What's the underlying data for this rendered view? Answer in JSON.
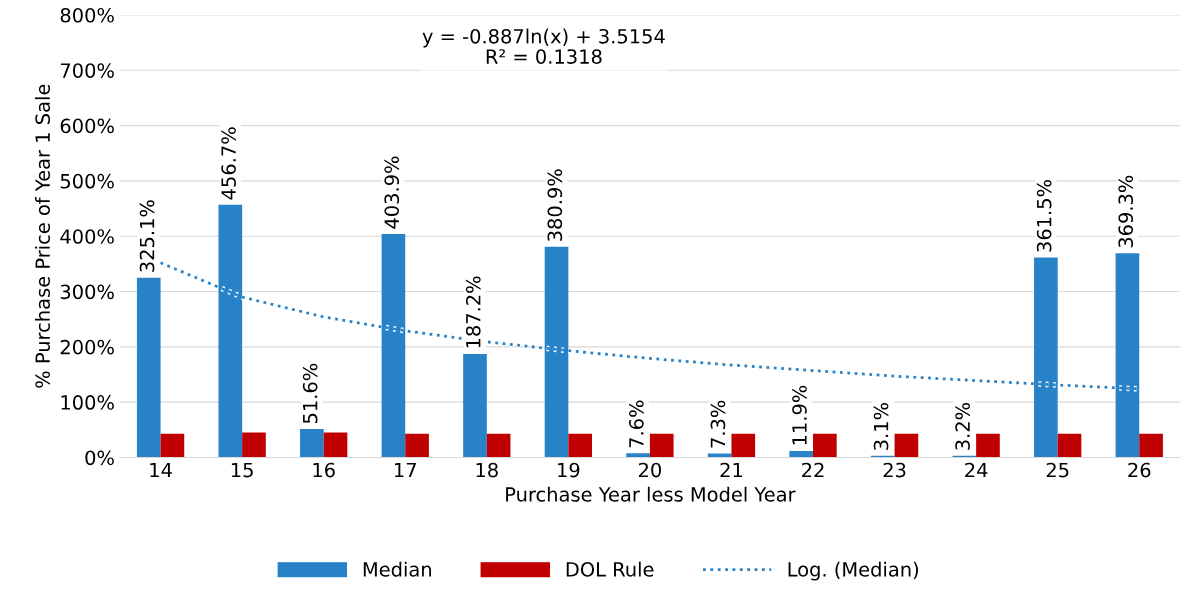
{
  "chart_data": {
    "type": "bar",
    "xlabel": "Purchase Year less Model Year",
    "ylabel": "% Purchase Price of Year 1 Sale",
    "categories": [
      "14",
      "15",
      "16",
      "17",
      "18",
      "19",
      "20",
      "21",
      "22",
      "23",
      "24",
      "25",
      "26"
    ],
    "series": [
      {
        "name": "Median",
        "color": "#2882c8",
        "values": [
          325.1,
          456.7,
          51.6,
          403.9,
          187.2,
          380.9,
          7.6,
          7.3,
          11.9,
          3.1,
          3.2,
          361.5,
          369.3
        ],
        "value_labels": [
          "325.1%",
          "456.7%",
          "51.6%",
          "403.9%",
          "187.2%",
          "380.9%",
          "7.6%",
          "7.3%",
          "11.9%",
          "3.1%",
          "3.2%",
          "361.5%",
          "369.3%"
        ]
      },
      {
        "name": "DOL Rule",
        "color": "#c00000",
        "values": [
          43,
          45,
          45,
          43,
          43,
          43,
          43,
          43,
          43,
          43,
          43,
          43,
          43
        ]
      },
      {
        "name": "Log. (Median)",
        "type": "line",
        "line_style": "dotted",
        "color": "#2882c8",
        "values": [
          352,
          290,
          254,
          229,
          209,
          193,
          179,
          167,
          157,
          147,
          139,
          131,
          124
        ]
      }
    ],
    "ylim": [
      0,
      800
    ],
    "yticks": [
      {
        "value": 0,
        "label": "0%"
      },
      {
        "value": 100,
        "label": "100%"
      },
      {
        "value": 200,
        "label": "200%"
      },
      {
        "value": 300,
        "label": "300%"
      },
      {
        "value": 400,
        "label": "400%"
      },
      {
        "value": 500,
        "label": "500%"
      },
      {
        "value": 600,
        "label": "600%"
      },
      {
        "value": 700,
        "label": "700%"
      },
      {
        "value": 800,
        "label": "800%"
      }
    ],
    "grid": "y",
    "legend": "bottom",
    "marker": "none",
    "annotations": [
      "y = -0.887ln(x) + 3.5154\nR² = 0.1318"
    ]
  }
}
